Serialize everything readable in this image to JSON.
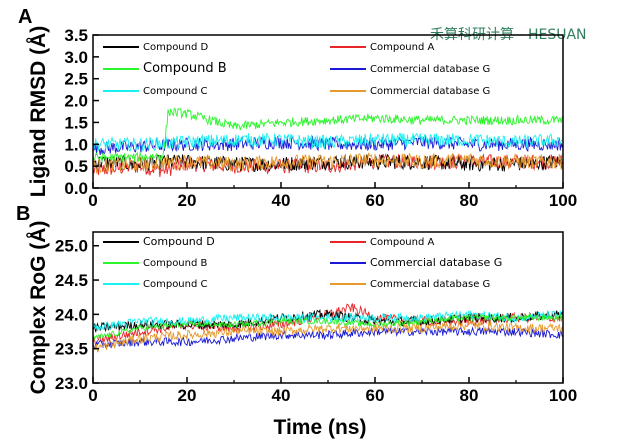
{
  "watermark": "禾算科研计算 - HESUAN",
  "colors": {
    "compound_d": "#000000",
    "compound_a": "#e8262a",
    "compound_b": "#2bf52b",
    "commercial_g": "#1a1ad6",
    "compound_c": "#19f0f0",
    "commercial_g2": "#e69a2e"
  },
  "chart_data": [
    {
      "type": "line",
      "panel_label": "A",
      "title": "",
      "xlabel": "",
      "ylabel": "Ligand RMSD (Å)",
      "xlim": [
        0,
        100
      ],
      "ylim": [
        0,
        3.5
      ],
      "xticks": [
        "0",
        "20",
        "40",
        "60",
        "80",
        "100"
      ],
      "yticks": [
        "0.0",
        "0.5",
        "1.0",
        "1.5",
        "2.0",
        "2.5",
        "3.0",
        "3.5"
      ],
      "grid": false,
      "legend_position": "top",
      "series": [
        {
          "name": "Compound D",
          "color_key": "compound_d",
          "x": [
            0,
            10,
            15,
            20,
            30,
            40,
            50,
            60,
            70,
            80,
            90,
            100
          ],
          "y": [
            0.6,
            0.55,
            0.6,
            0.6,
            0.55,
            0.55,
            0.6,
            0.6,
            0.6,
            0.55,
            0.55,
            0.6
          ]
        },
        {
          "name": "Compound A",
          "color_key": "compound_a",
          "x": [
            0,
            10,
            15,
            20,
            30,
            40,
            50,
            60,
            70,
            80,
            90,
            100
          ],
          "y": [
            0.4,
            0.5,
            0.4,
            0.55,
            0.5,
            0.5,
            0.5,
            0.6,
            0.6,
            0.6,
            0.6,
            0.6
          ]
        },
        {
          "name": "Compound B",
          "color_key": "compound_b",
          "x": [
            0,
            10,
            15,
            16,
            20,
            25,
            30,
            40,
            50,
            60,
            70,
            80,
            90,
            100
          ],
          "y": [
            0.7,
            0.7,
            0.75,
            1.75,
            1.7,
            1.55,
            1.4,
            1.5,
            1.55,
            1.6,
            1.55,
            1.55,
            1.55,
            1.55
          ]
        },
        {
          "name": "Commercial database G",
          "color_key": "commercial_g",
          "x": [
            0,
            10,
            20,
            30,
            40,
            50,
            60,
            70,
            80,
            90,
            100
          ],
          "y": [
            0.9,
            0.95,
            1.0,
            1.0,
            1.05,
            1.0,
            1.0,
            1.05,
            1.0,
            1.0,
            1.0
          ]
        },
        {
          "name": "Compound C",
          "color_key": "compound_c",
          "x": [
            0,
            10,
            20,
            30,
            40,
            50,
            60,
            70,
            80,
            90,
            100
          ],
          "y": [
            1.0,
            1.0,
            1.05,
            1.1,
            1.1,
            1.05,
            1.1,
            1.1,
            1.1,
            1.05,
            1.1
          ]
        },
        {
          "name": "Commercial database G",
          "color_key": "commercial_g2",
          "x": [
            0,
            10,
            20,
            30,
            40,
            50,
            60,
            70,
            80,
            90,
            100
          ],
          "y": [
            0.5,
            0.55,
            0.6,
            0.55,
            0.6,
            0.6,
            0.65,
            0.6,
            0.65,
            0.6,
            0.6
          ]
        }
      ]
    },
    {
      "type": "line",
      "panel_label": "B",
      "title": "",
      "xlabel": "Time (ns)",
      "ylabel": "Complex RoG (Å)",
      "xlim": [
        0,
        100
      ],
      "ylim": [
        23.0,
        25.2
      ],
      "xticks": [
        "0",
        "20",
        "40",
        "60",
        "80",
        "100"
      ],
      "yticks": [
        "23.0",
        "23.5",
        "24.0",
        "24.5",
        "25.0"
      ],
      "grid": false,
      "legend_position": "top",
      "series": [
        {
          "name": "Compound D",
          "color_key": "compound_d",
          "x": [
            0,
            10,
            20,
            30,
            40,
            50,
            60,
            70,
            80,
            90,
            100
          ],
          "y": [
            23.8,
            23.85,
            23.85,
            23.85,
            23.95,
            24.0,
            23.9,
            23.9,
            23.95,
            23.95,
            24.0
          ]
        },
        {
          "name": "Compound A",
          "color_key": "compound_a",
          "x": [
            0,
            10,
            20,
            30,
            40,
            50,
            55,
            60,
            70,
            80,
            90,
            100
          ],
          "y": [
            23.6,
            23.75,
            23.85,
            23.8,
            23.85,
            24.0,
            24.1,
            23.95,
            23.9,
            23.9,
            23.95,
            23.95
          ]
        },
        {
          "name": "Compound B",
          "color_key": "compound_b",
          "x": [
            0,
            10,
            20,
            30,
            40,
            50,
            60,
            70,
            80,
            90,
            100
          ],
          "y": [
            23.65,
            23.8,
            23.85,
            23.85,
            23.9,
            23.9,
            23.85,
            23.9,
            23.95,
            23.95,
            23.95
          ]
        },
        {
          "name": "Commercial database G",
          "color_key": "commercial_g",
          "x": [
            0,
            10,
            20,
            30,
            40,
            50,
            60,
            70,
            80,
            90,
            100
          ],
          "y": [
            23.55,
            23.6,
            23.6,
            23.65,
            23.7,
            23.7,
            23.75,
            23.75,
            23.75,
            23.75,
            23.7
          ]
        },
        {
          "name": "Compound C",
          "color_key": "compound_c",
          "x": [
            0,
            10,
            20,
            30,
            40,
            50,
            60,
            70,
            80,
            90,
            100
          ],
          "y": [
            23.8,
            23.9,
            23.9,
            23.95,
            23.95,
            23.95,
            23.95,
            23.95,
            24.0,
            23.95,
            24.0
          ]
        },
        {
          "name": "Commercial database G",
          "color_key": "commercial_g2",
          "x": [
            0,
            10,
            20,
            30,
            40,
            50,
            60,
            70,
            80,
            90,
            100
          ],
          "y": [
            23.5,
            23.65,
            23.7,
            23.75,
            23.75,
            23.8,
            23.8,
            23.8,
            23.85,
            23.8,
            23.8
          ]
        }
      ]
    }
  ]
}
